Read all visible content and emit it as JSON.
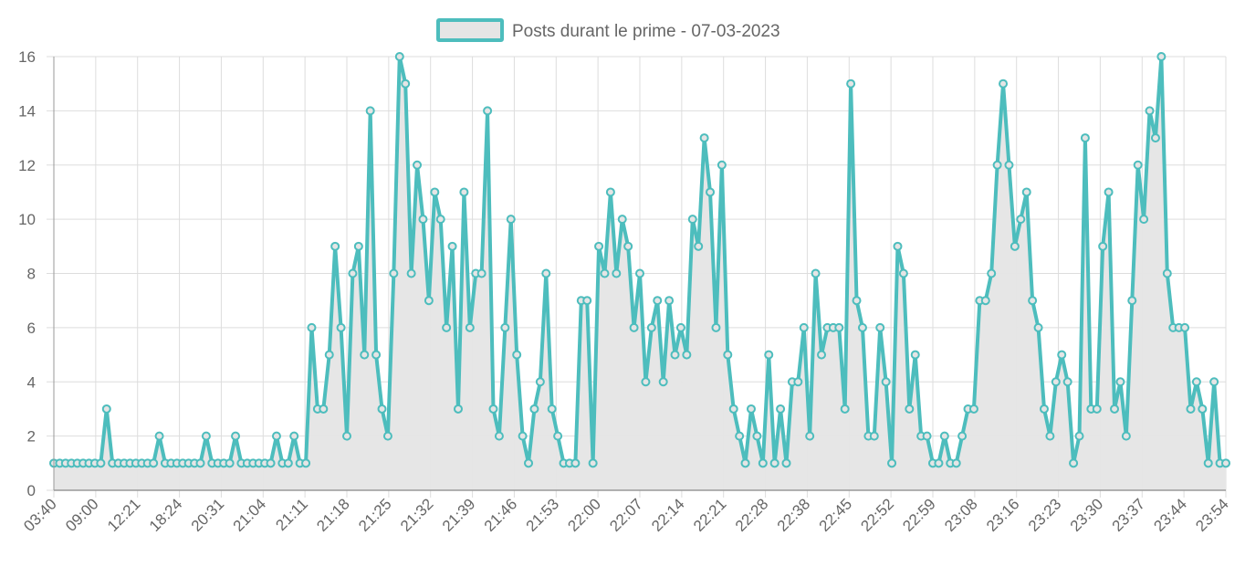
{
  "chart_data": {
    "type": "area",
    "legend": {
      "label": "Posts durant le prime - 07-03-2023",
      "position": "top-center"
    },
    "colors": {
      "line": "#4dbdbd",
      "fill": "#e5e5e5",
      "grid": "#dddddd",
      "axis": "#999999",
      "text": "#666666"
    },
    "grid": true,
    "ylim": [
      0,
      16
    ],
    "yticks": [
      0,
      2,
      4,
      6,
      8,
      10,
      12,
      14,
      16
    ],
    "xtick_labels": [
      "03:40",
      "09:00",
      "12:21",
      "18:24",
      "20:31",
      "21:04",
      "21:11",
      "21:18",
      "21:25",
      "21:32",
      "21:39",
      "21:46",
      "21:53",
      "22:00",
      "22:07",
      "22:14",
      "22:21",
      "22:28",
      "22:38",
      "22:45",
      "22:52",
      "22:59",
      "23:08",
      "23:16",
      "23:23",
      "23:30",
      "23:37",
      "23:44",
      "23:54"
    ],
    "values": [
      1,
      1,
      1,
      1,
      1,
      1,
      1,
      1,
      1,
      3,
      1,
      1,
      1,
      1,
      1,
      1,
      1,
      1,
      2,
      1,
      1,
      1,
      1,
      1,
      1,
      1,
      2,
      1,
      1,
      1,
      1,
      2,
      1,
      1,
      1,
      1,
      1,
      1,
      2,
      1,
      1,
      2,
      1,
      1,
      6,
      3,
      3,
      5,
      9,
      6,
      2,
      8,
      9,
      5,
      14,
      5,
      3,
      2,
      8,
      16,
      15,
      8,
      12,
      10,
      7,
      11,
      10,
      6,
      9,
      3,
      11,
      6,
      8,
      8,
      14,
      3,
      2,
      6,
      10,
      5,
      2,
      1,
      3,
      4,
      8,
      3,
      2,
      1,
      1,
      1,
      7,
      7,
      1,
      9,
      8,
      11,
      8,
      10,
      9,
      6,
      8,
      4,
      6,
      7,
      4,
      7,
      5,
      6,
      5,
      10,
      9,
      13,
      11,
      6,
      12,
      5,
      3,
      2,
      1,
      3,
      2,
      1,
      5,
      1,
      3,
      1,
      4,
      4,
      6,
      2,
      8,
      5,
      6,
      6,
      6,
      3,
      15,
      7,
      6,
      2,
      2,
      6,
      4,
      1,
      9,
      8,
      3,
      5,
      2,
      2,
      1,
      1,
      2,
      1,
      1,
      2,
      3,
      3,
      7,
      7,
      8,
      12,
      15,
      12,
      9,
      10,
      11,
      7,
      6,
      3,
      2,
      4,
      5,
      4,
      1,
      2,
      13,
      3,
      3,
      9,
      11,
      3,
      4,
      2,
      7,
      12,
      10,
      14,
      13,
      16,
      8,
      6,
      6,
      6,
      3,
      4,
      3,
      1,
      4,
      1,
      1
    ]
  }
}
